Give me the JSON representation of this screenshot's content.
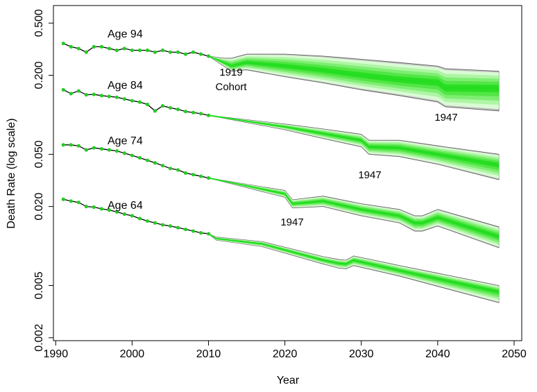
{
  "chart_data": {
    "type": "fan",
    "xlabel": "Year",
    "ylabel": "Death Rate (log scale)",
    "xlim": [
      1989.7,
      2051
    ],
    "xticks": [
      1990,
      2000,
      2010,
      2020,
      2030,
      2040,
      2050
    ],
    "ylim": [
      0.0019,
      0.68
    ],
    "log_y": true,
    "yticks": [
      0.002,
      0.005,
      {
        "value": 0.02,
        "label": "0.020"
      },
      {
        "value": 0.05,
        "label": "0.050"
      },
      {
        "value": 0.2,
        "label": "0.200"
      },
      {
        "value": 0.5,
        "label": "0.500"
      }
    ],
    "point_color": "#22cc22",
    "line_color": "#000000",
    "fan_color": "#22dd22",
    "envelope_color": "#888888",
    "annotation_color": "#e00000",
    "series": [
      {
        "name": "Age 94",
        "x": [
          1991,
          1992,
          1993,
          1994,
          1995,
          1996,
          1997,
          1998,
          1999,
          2000,
          2001,
          2002,
          2003,
          2004,
          2005,
          2006,
          2007,
          2008,
          2009,
          2010
        ],
        "values": [
          0.35,
          0.33,
          0.32,
          0.3,
          0.33,
          0.33,
          0.32,
          0.31,
          0.32,
          0.31,
          0.31,
          0.31,
          0.3,
          0.31,
          0.3,
          0.3,
          0.29,
          0.3,
          0.29,
          0.28
        ],
        "forecast": {
          "x": [
            2010,
            2012,
            2013,
            2015,
            2020,
            2025,
            2030,
            2035,
            2040,
            2041,
            2048
          ],
          "median": [
            0.28,
            0.25,
            0.235,
            0.25,
            0.235,
            0.218,
            0.2,
            0.185,
            0.177,
            0.16,
            0.16
          ],
          "lower": [
            0.28,
            0.235,
            0.215,
            0.22,
            0.195,
            0.175,
            0.155,
            0.14,
            0.125,
            0.115,
            0.107
          ],
          "upper": [
            0.28,
            0.27,
            0.27,
            0.29,
            0.29,
            0.28,
            0.265,
            0.25,
            0.235,
            0.225,
            0.215
          ]
        }
      },
      {
        "name": "Age 84",
        "x": [
          1991,
          1992,
          1993,
          1994,
          1995,
          1996,
          1997,
          1998,
          1999,
          2000,
          2001,
          2002,
          2003,
          2004,
          2005,
          2006,
          2007,
          2008,
          2009,
          2010
        ],
        "values": [
          0.155,
          0.145,
          0.152,
          0.142,
          0.143,
          0.14,
          0.138,
          0.136,
          0.132,
          0.128,
          0.125,
          0.12,
          0.107,
          0.117,
          0.113,
          0.11,
          0.106,
          0.104,
          0.102,
          0.099
        ],
        "forecast": {
          "x": [
            2010,
            2020,
            2025,
            2030,
            2031,
            2035,
            2040,
            2048
          ],
          "median": [
            0.099,
            0.081,
            0.072,
            0.064,
            0.057,
            0.056,
            0.05,
            0.0415
          ],
          "lower": [
            0.099,
            0.077,
            0.066,
            0.057,
            0.05,
            0.048,
            0.042,
            0.032
          ],
          "upper": [
            0.099,
            0.085,
            0.078,
            0.071,
            0.064,
            0.064,
            0.058,
            0.05
          ]
        }
      },
      {
        "name": "Age 74",
        "x": [
          1991,
          1992,
          1993,
          1994,
          1995,
          1996,
          1997,
          1998,
          1999,
          2000,
          2001,
          2002,
          2003,
          2004,
          2005,
          2006,
          2007,
          2008,
          2009,
          2010
        ],
        "values": [
          0.059,
          0.059,
          0.058,
          0.054,
          0.056,
          0.055,
          0.054,
          0.053,
          0.051,
          0.049,
          0.047,
          0.045,
          0.043,
          0.041,
          0.039,
          0.038,
          0.036,
          0.035,
          0.034,
          0.033
        ],
        "forecast": {
          "x": [
            2010,
            2020,
            2021,
            2025,
            2030,
            2035,
            2037,
            2038,
            2040,
            2048
          ],
          "median": [
            0.033,
            0.025,
            0.021,
            0.022,
            0.019,
            0.017,
            0.015,
            0.015,
            0.0165,
            0.0118
          ],
          "lower": [
            0.033,
            0.0235,
            0.0195,
            0.02,
            0.017,
            0.015,
            0.013,
            0.013,
            0.0142,
            0.0097
          ],
          "upper": [
            0.033,
            0.0265,
            0.0225,
            0.024,
            0.021,
            0.019,
            0.017,
            0.017,
            0.019,
            0.014
          ]
        }
      },
      {
        "name": "Age 64",
        "x": [
          1991,
          1992,
          1993,
          1994,
          1995,
          1996,
          1997,
          1998,
          1999,
          2000,
          2001,
          2002,
          2003,
          2004,
          2005,
          2006,
          2007,
          2008,
          2009,
          2010
        ],
        "values": [
          0.0227,
          0.022,
          0.0215,
          0.02,
          0.0198,
          0.0192,
          0.0188,
          0.0182,
          0.0175,
          0.017,
          0.0162,
          0.0155,
          0.015,
          0.0145,
          0.0142,
          0.0138,
          0.0134,
          0.013,
          0.0126,
          0.0124
        ],
        "forecast": {
          "x": [
            2010,
            2011,
            2017,
            2025,
            2027,
            2028,
            2029,
            2035,
            2048
          ],
          "median": [
            0.0124,
            0.0114,
            0.0104,
            0.0078,
            0.0074,
            0.0073,
            0.0078,
            0.0065,
            0.0045
          ],
          "lower": [
            0.0124,
            0.0111,
            0.0099,
            0.0073,
            0.0068,
            0.0067,
            0.0071,
            0.0059,
            0.0037
          ],
          "upper": [
            0.0124,
            0.0117,
            0.0108,
            0.0083,
            0.0079,
            0.0078,
            0.0084,
            0.0071,
            0.005
          ]
        }
      }
    ],
    "annotations": [
      "1919",
      "Cohort",
      "1947",
      "1947",
      "1947"
    ]
  }
}
